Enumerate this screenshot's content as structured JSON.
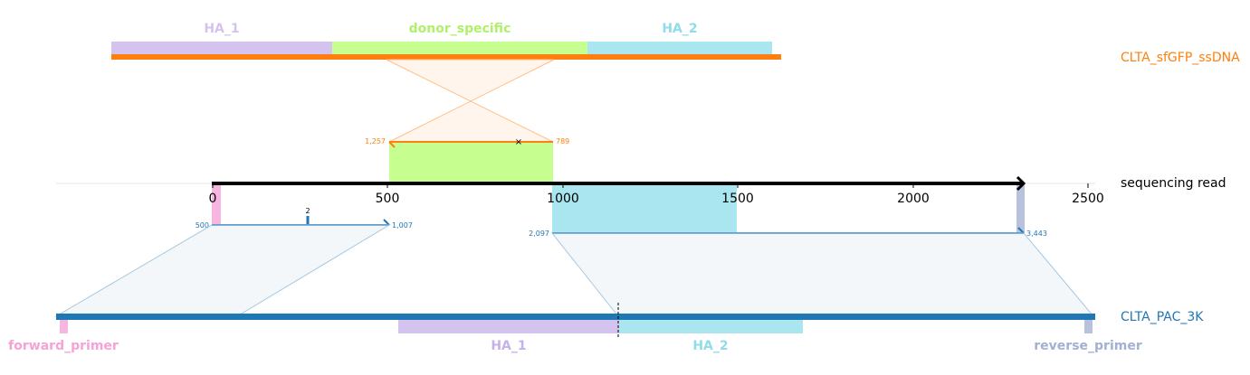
{
  "donor": {
    "name": "CLTA_sfGFP_ssDNA",
    "color": "#ff7f0e",
    "features": [
      {
        "label": "HA_1",
        "color": "#d5c3ef"
      },
      {
        "label": "donor_specific",
        "color": "#c6fe8f"
      },
      {
        "label": "HA_2",
        "color": "#aae6ef"
      }
    ],
    "alignment": {
      "start_label": "1,257",
      "end_label": "789"
    }
  },
  "read": {
    "name": "sequencing read",
    "ticks": [
      "0",
      "500",
      "1000",
      "1500",
      "2000",
      "2500"
    ],
    "left_alignment": {
      "start_label": "500",
      "end_label": "1,007",
      "indel_label": "2"
    },
    "right_alignment": {
      "start_label": "2,097",
      "end_label": "3,443"
    }
  },
  "target": {
    "name": "CLTA_PAC_3K",
    "color": "#1f77b4",
    "features": [
      {
        "label": "forward_primer",
        "color": "#f7b6e0"
      },
      {
        "label": "HA_1",
        "color": "#d5c3ef"
      },
      {
        "label": "HA_2",
        "color": "#aae6ef"
      },
      {
        "label": "reverse_primer",
        "color": "#b8c2dc"
      }
    ]
  }
}
